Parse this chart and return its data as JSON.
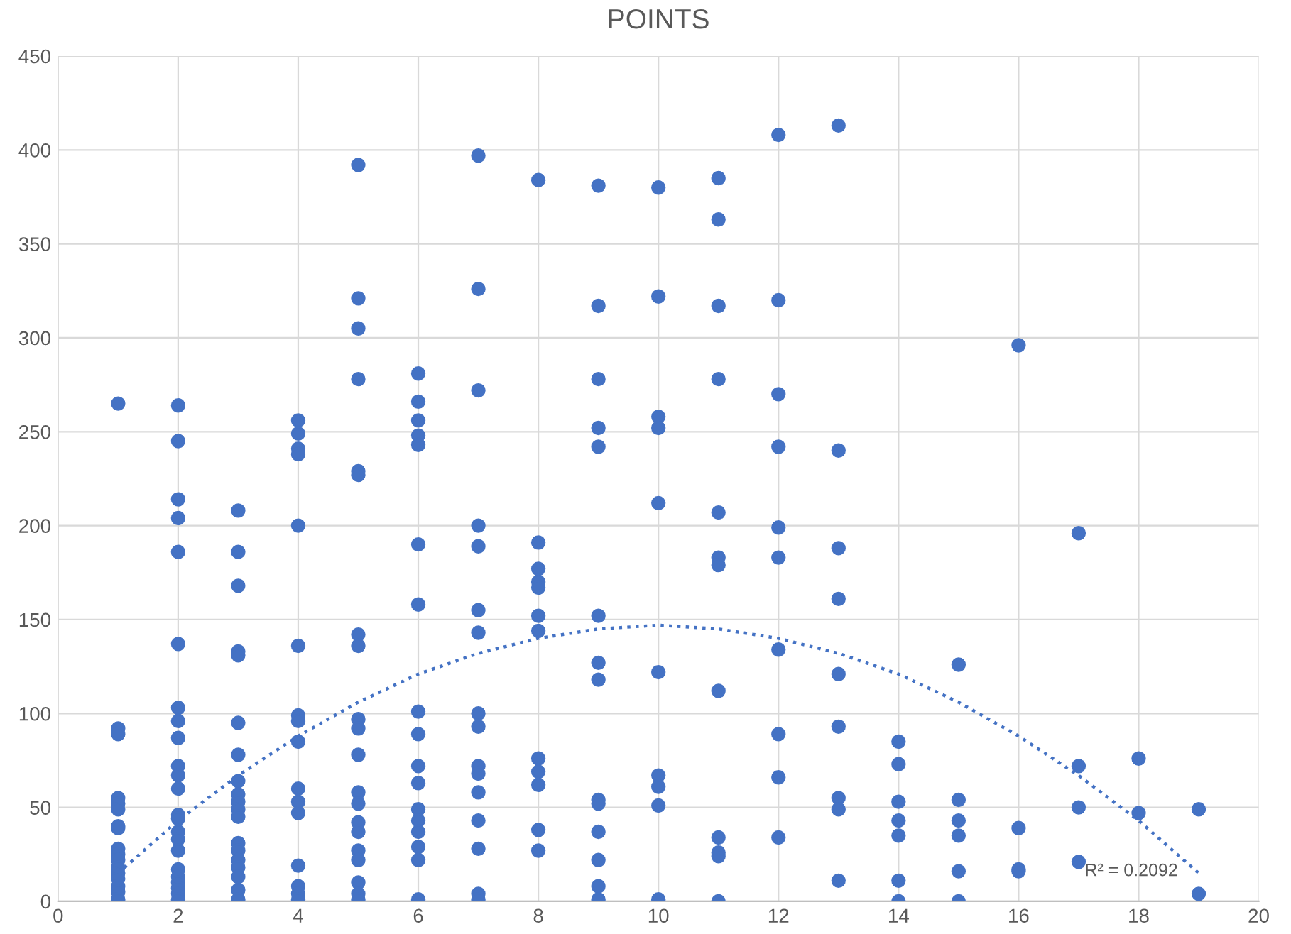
{
  "chart_data": {
    "type": "scatter",
    "title": "POINTS",
    "series": [
      {
        "color": "#4472c4",
        "x": [
          1,
          1,
          1,
          1,
          1,
          1,
          1,
          1,
          1,
          1,
          1,
          1,
          1,
          1,
          1,
          1,
          1,
          2,
          2,
          2,
          2,
          2,
          2,
          2,
          2,
          2,
          2,
          2,
          2,
          2,
          2,
          2,
          2,
          2,
          2,
          2,
          2,
          2,
          2,
          2,
          3,
          3,
          3,
          3,
          3,
          3,
          3,
          3,
          3,
          3,
          3,
          3,
          3,
          3,
          3,
          3,
          3,
          3,
          3,
          4,
          4,
          4,
          4,
          4,
          4,
          4,
          4,
          4,
          4,
          4,
          4,
          4,
          4,
          4,
          4,
          5,
          5,
          5,
          5,
          5,
          5,
          5,
          5,
          5,
          5,
          5,
          5,
          5,
          5,
          5,
          5,
          5,
          5,
          5,
          5,
          6,
          6,
          6,
          6,
          6,
          6,
          6,
          6,
          6,
          6,
          6,
          6,
          6,
          6,
          6,
          6,
          6,
          7,
          7,
          7,
          7,
          7,
          7,
          7,
          7,
          7,
          7,
          7,
          7,
          7,
          7,
          7,
          7,
          8,
          8,
          8,
          8,
          8,
          8,
          8,
          8,
          8,
          8,
          8,
          8,
          9,
          9,
          9,
          9,
          9,
          9,
          9,
          9,
          9,
          9,
          9,
          9,
          9,
          9,
          10,
          10,
          10,
          10,
          10,
          10,
          10,
          10,
          10,
          10,
          11,
          11,
          11,
          11,
          11,
          11,
          11,
          11,
          11,
          11,
          11,
          11,
          12,
          12,
          12,
          12,
          12,
          12,
          12,
          12,
          12,
          12,
          13,
          13,
          13,
          13,
          13,
          13,
          13,
          13,
          13,
          14,
          14,
          14,
          14,
          14,
          14,
          14,
          15,
          15,
          15,
          15,
          15,
          15,
          16,
          16,
          16,
          16,
          17,
          17,
          17,
          17,
          18,
          18,
          19,
          19
        ],
        "values": [
          265,
          92,
          89,
          55,
          52,
          49,
          40,
          39,
          28,
          25,
          22,
          18,
          15,
          12,
          8,
          5,
          1,
          264,
          245,
          214,
          204,
          186,
          137,
          103,
          96,
          87,
          72,
          67,
          60,
          46,
          44,
          37,
          33,
          27,
          17,
          13,
          10,
          7,
          4,
          1,
          208,
          186,
          168,
          133,
          131,
          95,
          78,
          64,
          57,
          53,
          49,
          45,
          31,
          27,
          22,
          18,
          13,
          6,
          1,
          256,
          249,
          241,
          238,
          200,
          136,
          99,
          96,
          85,
          60,
          53,
          47,
          19,
          8,
          4,
          1,
          392,
          321,
          305,
          278,
          229,
          227,
          142,
          136,
          97,
          92,
          78,
          58,
          52,
          42,
          37,
          27,
          22,
          10,
          4,
          1,
          281,
          266,
          256,
          248,
          243,
          190,
          158,
          101,
          89,
          72,
          63,
          49,
          43,
          37,
          29,
          22,
          1,
          397,
          326,
          272,
          200,
          189,
          155,
          143,
          100,
          93,
          72,
          68,
          58,
          43,
          28,
          4,
          1,
          384,
          191,
          177,
          170,
          167,
          152,
          144,
          76,
          69,
          62,
          38,
          27,
          381,
          317,
          278,
          252,
          242,
          152,
          127,
          118,
          54,
          52,
          37,
          22,
          8,
          1,
          380,
          322,
          258,
          252,
          212,
          122,
          67,
          61,
          51,
          1,
          385,
          363,
          317,
          278,
          207,
          183,
          179,
          112,
          34,
          26,
          24,
          0,
          408,
          320,
          270,
          242,
          199,
          183,
          134,
          89,
          66,
          34,
          413,
          240,
          188,
          161,
          121,
          93,
          55,
          49,
          11,
          85,
          73,
          53,
          43,
          35,
          11,
          0,
          126,
          54,
          43,
          35,
          16,
          0,
          296,
          39,
          17,
          16,
          196,
          72,
          50,
          21,
          76,
          47,
          49,
          4
        ]
      },
      {
        "type": "line",
        "color": "#4472c4",
        "line_style": "dotted",
        "marker": "none",
        "x": [
          1,
          2,
          3,
          4,
          5,
          6,
          7,
          8,
          9,
          10,
          11,
          12,
          13,
          14,
          15,
          16,
          17,
          18,
          19
        ],
        "values": [
          15,
          43,
          67,
          88,
          106,
          121,
          132,
          140,
          145,
          147,
          145,
          140,
          132,
          121,
          106,
          88,
          67,
          43,
          15
        ]
      }
    ],
    "annotations": [
      "R² = 0.2092"
    ],
    "marker": "circle",
    "xlim": [
      0,
      20
    ],
    "xticks": [
      0,
      2,
      4,
      6,
      8,
      10,
      12,
      14,
      16,
      18,
      20
    ],
    "ylim": [
      0,
      450
    ],
    "yticks": [
      0,
      50,
      100,
      150,
      200,
      250,
      300,
      350,
      400,
      450
    ],
    "grid": true,
    "legend": false
  }
}
